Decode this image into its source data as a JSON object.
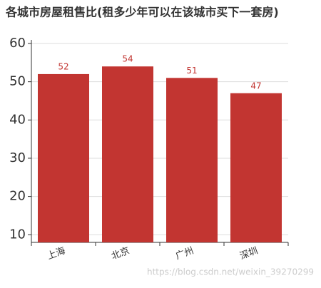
{
  "chart_data": {
    "type": "bar",
    "title": "各城市房屋租售比(租多少年可以在该城市买下一套房)",
    "categories": [
      "上海",
      "北京",
      "广州",
      "深圳"
    ],
    "values": [
      52,
      54,
      51,
      47
    ],
    "color": "#c23531",
    "ylim": [
      8,
      60
    ],
    "yticks": [
      10,
      20,
      30,
      40,
      50,
      60
    ],
    "grid": true,
    "watermark": "https://blog.csdn.net/weixin_39270299"
  }
}
